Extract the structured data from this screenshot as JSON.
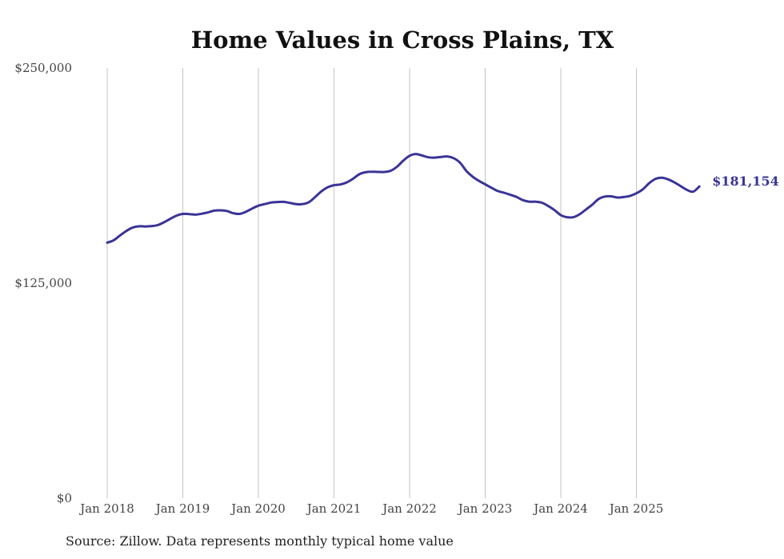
{
  "chart_data": {
    "type": "line",
    "title": "Home Values in Cross Plains, TX",
    "xlabel": "",
    "ylabel": "",
    "ylim": [
      0,
      250000
    ],
    "y_ticks": [
      {
        "value": 0,
        "label": "$0"
      },
      {
        "value": 125000,
        "label": "$125,000"
      },
      {
        "value": 250000,
        "label": "$250,000"
      }
    ],
    "x_ticks": [
      {
        "value": 2018.0,
        "label": "Jan 2018"
      },
      {
        "value": 2019.0,
        "label": "Jan 2019"
      },
      {
        "value": 2020.0,
        "label": "Jan 2020"
      },
      {
        "value": 2021.0,
        "label": "Jan 2021"
      },
      {
        "value": 2022.0,
        "label": "Jan 2022"
      },
      {
        "value": 2023.0,
        "label": "Jan 2023"
      },
      {
        "value": 2024.0,
        "label": "Jan 2024"
      },
      {
        "value": 2025.0,
        "label": "Jan 2025"
      }
    ],
    "xlim": [
      2018.0,
      2025.833
    ],
    "grid": "vertical",
    "series": [
      {
        "name": "Typical home value",
        "color": "#3a3496",
        "end_label": "$181,154",
        "x": [
          2018.0,
          2018.083,
          2018.167,
          2018.25,
          2018.333,
          2018.417,
          2018.5,
          2018.583,
          2018.667,
          2018.75,
          2018.833,
          2018.917,
          2019.0,
          2019.083,
          2019.167,
          2019.25,
          2019.333,
          2019.417,
          2019.5,
          2019.583,
          2019.667,
          2019.75,
          2019.833,
          2019.917,
          2020.0,
          2020.083,
          2020.167,
          2020.25,
          2020.333,
          2020.417,
          2020.5,
          2020.583,
          2020.667,
          2020.75,
          2020.833,
          2020.917,
          2021.0,
          2021.083,
          2021.167,
          2021.25,
          2021.333,
          2021.417,
          2021.5,
          2021.583,
          2021.667,
          2021.75,
          2021.833,
          2021.917,
          2022.0,
          2022.083,
          2022.167,
          2022.25,
          2022.333,
          2022.417,
          2022.5,
          2022.583,
          2022.667,
          2022.75,
          2022.833,
          2022.917,
          2023.0,
          2023.083,
          2023.167,
          2023.25,
          2023.333,
          2023.417,
          2023.5,
          2023.583,
          2023.667,
          2023.75,
          2023.833,
          2023.917,
          2024.0,
          2024.083,
          2024.167,
          2024.25,
          2024.333,
          2024.417,
          2024.5,
          2024.583,
          2024.667,
          2024.75,
          2024.833,
          2024.917,
          2025.0,
          2025.083,
          2025.167,
          2025.25,
          2025.333,
          2025.417,
          2025.5,
          2025.583,
          2025.667,
          2025.75,
          2025.833
        ],
        "values": [
          148500,
          149800,
          152600,
          155200,
          157200,
          158000,
          157900,
          158100,
          158700,
          160300,
          162300,
          164200,
          165200,
          165100,
          164800,
          165300,
          166100,
          167100,
          167300,
          166900,
          165600,
          165200,
          166400,
          168300,
          170000,
          170900,
          171800,
          172100,
          172200,
          171600,
          170900,
          170900,
          172000,
          175000,
          178300,
          180700,
          181900,
          182300,
          183500,
          185600,
          188200,
          189400,
          189700,
          189600,
          189600,
          190300,
          192600,
          196200,
          199000,
          200000,
          199100,
          198100,
          197900,
          198300,
          198600,
          197600,
          195000,
          190200,
          186900,
          184400,
          182400,
          180400,
          178500,
          177500,
          176300,
          175000,
          173200,
          172300,
          172300,
          171700,
          169800,
          167400,
          164500,
          163300,
          163300,
          165000,
          167800,
          170600,
          173900,
          175300,
          175400,
          174700,
          175000,
          175700,
          177200,
          179400,
          183000,
          185500,
          186200,
          185300,
          183600,
          181400,
          179200,
          178100,
          181154
        ]
      }
    ]
  },
  "footer": {
    "source": "Source: Zillow. Data represents monthly typical home value"
  }
}
